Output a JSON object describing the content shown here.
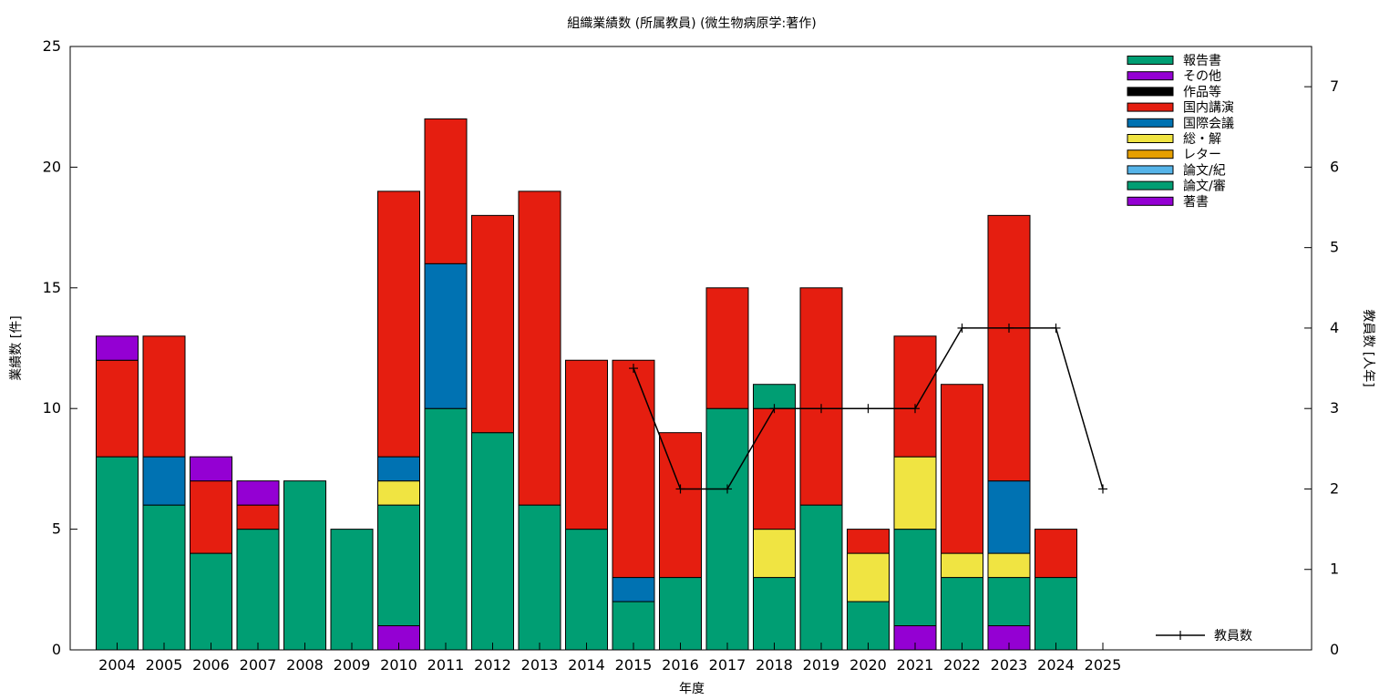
{
  "chart_data": {
    "type": "bar",
    "stacked": true,
    "title": "組織業績数 (所属教員) (微生物病原学:著作)",
    "xlabel": "年度",
    "ylabel": "業績数 [件]",
    "y2label": "教員数 [人年]",
    "ylim": [
      0,
      25
    ],
    "y2lim": [
      0,
      7.5
    ],
    "yticks": [
      "0",
      "5",
      "10",
      "15",
      "20",
      "25"
    ],
    "y2ticks": [
      "0",
      "1",
      "2",
      "3",
      "4",
      "5",
      "6",
      "7"
    ],
    "grid": false,
    "legend_position": "top-right",
    "categories": [
      "2004",
      "2005",
      "2006",
      "2007",
      "2008",
      "2009",
      "2010",
      "2011",
      "2012",
      "2013",
      "2014",
      "2015",
      "2016",
      "2017",
      "2018",
      "2019",
      "2020",
      "2021",
      "2022",
      "2023",
      "2024",
      "2025"
    ],
    "series": [
      {
        "name": "著書",
        "color": "#9400d3",
        "values": [
          0,
          0,
          0,
          0,
          0,
          0,
          1,
          0,
          0,
          0,
          0,
          0,
          0,
          0,
          0,
          0,
          0,
          1,
          0,
          1,
          0,
          0
        ]
      },
      {
        "name": "論文/審",
        "color": "#009e73",
        "values": [
          8,
          6,
          4,
          5,
          7,
          5,
          5,
          10,
          9,
          6,
          5,
          2,
          3,
          10,
          3,
          6,
          2,
          4,
          3,
          2,
          3,
          0
        ]
      },
      {
        "name": "論文/紀",
        "color": "#56b4e9",
        "values": [
          0,
          0,
          0,
          0,
          0,
          0,
          0,
          0,
          0,
          0,
          0,
          0,
          0,
          0,
          0,
          0,
          0,
          0,
          0,
          0,
          0,
          0
        ]
      },
      {
        "name": "レター",
        "color": "#e69f00",
        "values": [
          0,
          0,
          0,
          0,
          0,
          0,
          0,
          0,
          0,
          0,
          0,
          0,
          0,
          0,
          0,
          0,
          0,
          0,
          0,
          0,
          0,
          0
        ]
      },
      {
        "name": "総・解",
        "color": "#f0e442",
        "values": [
          0,
          0,
          0,
          0,
          0,
          0,
          1,
          0,
          0,
          0,
          0,
          0,
          0,
          0,
          2,
          0,
          2,
          3,
          1,
          1,
          0,
          0
        ]
      },
      {
        "name": "国際会議",
        "color": "#0072b2",
        "values": [
          0,
          2,
          0,
          0,
          0,
          0,
          1,
          6,
          0,
          0,
          0,
          1,
          0,
          0,
          0,
          0,
          0,
          0,
          0,
          3,
          0,
          0
        ]
      },
      {
        "name": "国内講演",
        "color": "#e51e10",
        "values": [
          4,
          5,
          3,
          1,
          0,
          0,
          11,
          6,
          9,
          13,
          7,
          9,
          6,
          5,
          5,
          9,
          1,
          5,
          7,
          11,
          2,
          0
        ]
      },
      {
        "name": "作品等",
        "color": "#000000",
        "values": [
          0,
          0,
          0,
          0,
          0,
          0,
          0,
          0,
          0,
          0,
          0,
          0,
          0,
          0,
          0,
          0,
          0,
          0,
          0,
          0,
          0,
          0
        ]
      },
      {
        "name": "その他",
        "color": "#9400d3",
        "values": [
          1,
          0,
          1,
          1,
          0,
          0,
          0,
          0,
          0,
          0,
          0,
          0,
          0,
          0,
          0,
          0,
          0,
          0,
          0,
          0,
          0,
          0
        ]
      },
      {
        "name": "報告書",
        "color": "#009e73",
        "values": [
          0,
          0,
          0,
          0,
          0,
          0,
          0,
          0,
          0,
          0,
          0,
          0,
          0,
          0,
          1,
          0,
          0,
          0,
          0,
          0,
          0,
          0
        ]
      }
    ],
    "legend_order": [
      "報告書",
      "その他",
      "作品等",
      "国内講演",
      "国際会議",
      "総・解",
      "レター",
      "論文/紀",
      "論文/審",
      "著書"
    ],
    "line": {
      "name": "教員数",
      "axis": "y2",
      "color": "#000000",
      "x": [
        "2015",
        "2016",
        "2017",
        "2018",
        "2019",
        "2020",
        "2021",
        "2022",
        "2023",
        "2024",
        "2025"
      ],
      "values": [
        3.5,
        2,
        2,
        3,
        3,
        3,
        3,
        4,
        4,
        4,
        2
      ]
    }
  }
}
